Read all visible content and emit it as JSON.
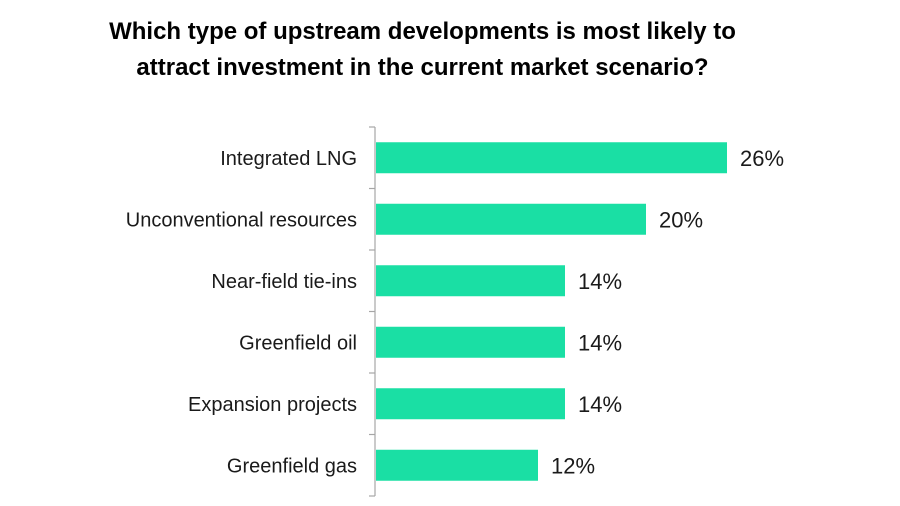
{
  "chart_data": {
    "type": "bar",
    "orientation": "horizontal",
    "title_lines": [
      "Which type of upstream developments is most likely to",
      "attract investment in the current market scenario?"
    ],
    "categories": [
      "Integrated LNG",
      "Unconventional resources",
      "Near-field tie-ins",
      "Greenfield oil",
      "Expansion projects",
      "Greenfield gas"
    ],
    "values": [
      26,
      20,
      14,
      14,
      14,
      12
    ],
    "value_labels": [
      "26%",
      "20%",
      "14%",
      "14%",
      "14%",
      "12%"
    ],
    "xlim": [
      0,
      26
    ],
    "grid": false,
    "legend": "none",
    "bar_color": "#1adfa4",
    "axis_color": "#a6a6a6"
  }
}
